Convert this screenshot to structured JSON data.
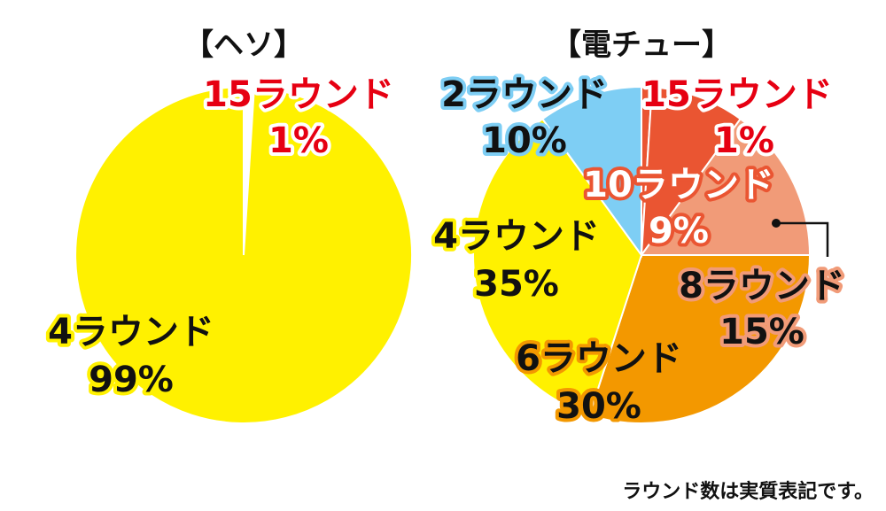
{
  "chart_data": [
    {
      "type": "pie",
      "title": "【ヘソ】",
      "slices": [
        {
          "label": "15ラウンド",
          "value": 1,
          "value_text": "1%",
          "color": "#ffffff",
          "text_color": "#e60012",
          "outline": "#ffffff"
        },
        {
          "label": "4ラウンド",
          "value": 99,
          "value_text": "99%",
          "color": "#fff100",
          "text_color": "#111111",
          "outline": "#fff100"
        }
      ]
    },
    {
      "type": "pie",
      "title": "【電チュー】",
      "slices": [
        {
          "label": "15ラウンド",
          "value": 1,
          "value_text": "1%",
          "color": "#ea5532",
          "text_color": "#e60012",
          "outline": "#ffffff"
        },
        {
          "label": "10ラウンド",
          "value": 9,
          "value_text": "9%",
          "color": "#ea5532",
          "text_color": "#ffffff",
          "outline": "#ea5532"
        },
        {
          "label": "8ラウンド",
          "value": 15,
          "value_text": "15%",
          "color": "#f19b78",
          "text_color": "#111111",
          "outline": "#f19b78"
        },
        {
          "label": "6ラウンド",
          "value": 30,
          "value_text": "30%",
          "color": "#f39800",
          "text_color": "#111111",
          "outline": "#f39800"
        },
        {
          "label": "4ラウンド",
          "value": 35,
          "value_text": "35%",
          "color": "#fff100",
          "text_color": "#111111",
          "outline": "#fff100"
        },
        {
          "label": "2ラウンド",
          "value": 10,
          "value_text": "10%",
          "color": "#7ecef4",
          "text_color": "#111111",
          "outline": "#7ecef4"
        }
      ]
    }
  ],
  "footer_note": "ラウンド数は実質表記です。"
}
